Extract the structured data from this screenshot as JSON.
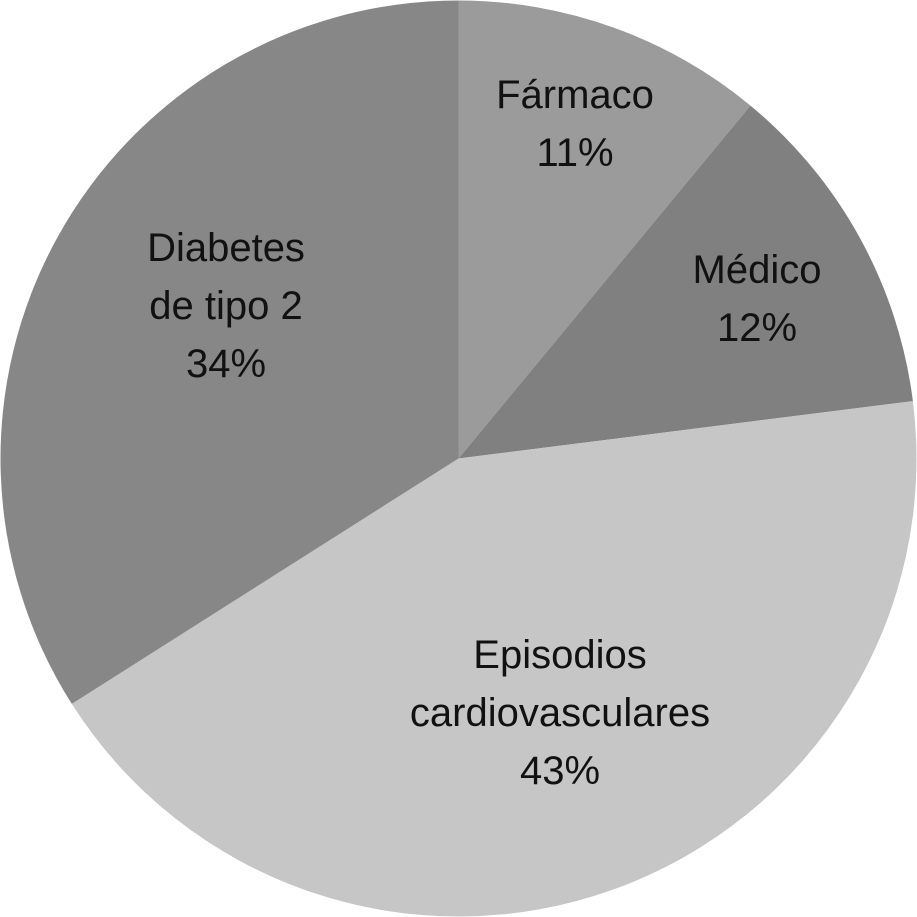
{
  "chart_data": {
    "type": "pie",
    "categories": [
      "Fármaco",
      "Médico",
      "Episodios\ncardiovasculares",
      "Diabetes\nde tipo 2"
    ],
    "values": [
      11,
      12,
      43,
      34
    ],
    "value_labels": [
      "11%",
      "12%",
      "43%",
      "34%"
    ],
    "colors": [
      "#9b9b9b",
      "#808080",
      "#c6c6c6",
      "#878787"
    ]
  }
}
